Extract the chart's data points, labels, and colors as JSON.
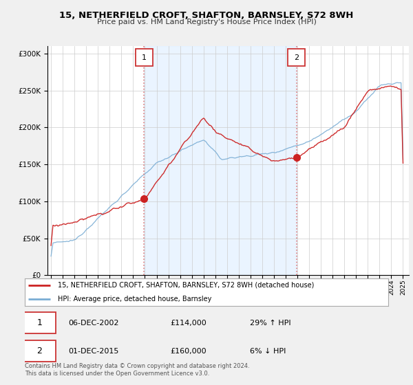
{
  "title": "15, NETHERFIELD CROFT, SHAFTON, BARNSLEY, S72 8WH",
  "subtitle": "Price paid vs. HM Land Registry's House Price Index (HPI)",
  "legend_entry1": "15, NETHERFIELD CROFT, SHAFTON, BARNSLEY, S72 8WH (detached house)",
  "legend_entry2": "HPI: Average price, detached house, Barnsley",
  "annotation1_date": "06-DEC-2002",
  "annotation1_price": "£114,000",
  "annotation1_hpi": "29% ↑ HPI",
  "annotation1_year": 2002.92,
  "annotation2_date": "01-DEC-2015",
  "annotation2_price": "£160,000",
  "annotation2_hpi": "6% ↓ HPI",
  "annotation2_year": 2015.92,
  "footer": "Contains HM Land Registry data © Crown copyright and database right 2024.\nThis data is licensed under the Open Government Licence v3.0.",
  "hpi_color": "#7aadd4",
  "price_color": "#cc2222",
  "vline_color": "#e08080",
  "shade_color": "#ddeeff",
  "background_color": "#f0f0f0",
  "plot_bg_color": "#ffffff",
  "ylim": [
    0,
    310000
  ],
  "xlim_start": 1994.7,
  "xlim_end": 2025.5
}
